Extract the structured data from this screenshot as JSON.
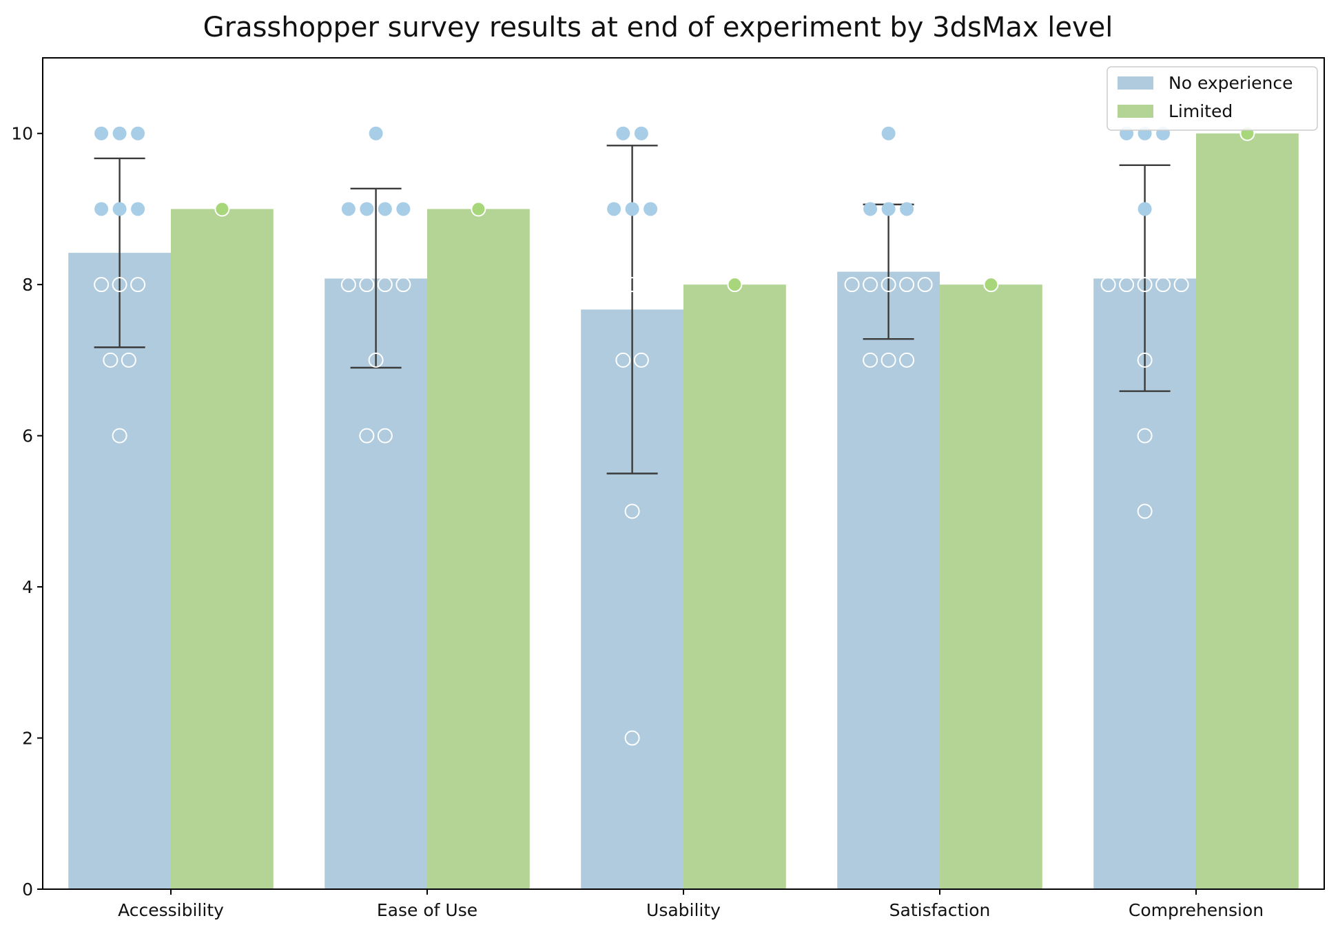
{
  "chart_data": {
    "type": "bar",
    "title": "Grasshopper survey results at end of experiment by 3dsMax level",
    "xlabel": "",
    "ylabel": "",
    "ylim": [
      0,
      11
    ],
    "yticks": [
      0,
      2,
      4,
      6,
      8,
      10
    ],
    "categories": [
      "Accessibility",
      "Ease of Use",
      "Usability",
      "Satisfaction",
      "Comprehension"
    ],
    "series": [
      {
        "name": "No experience",
        "color": "#afcbdd",
        "values": [
          8.42,
          8.08,
          7.67,
          8.17,
          8.08
        ],
        "error_bars": [
          [
            7.17,
            9.67
          ],
          [
            6.9,
            9.27
          ],
          [
            5.5,
            9.84
          ],
          [
            7.28,
            9.06
          ],
          [
            6.59,
            9.58
          ]
        ],
        "points": [
          [
            10,
            10,
            10,
            9,
            9,
            9,
            8,
            8,
            8,
            7,
            7,
            6
          ],
          [
            10,
            9,
            9,
            9,
            9,
            8,
            8,
            8,
            8,
            7,
            6,
            6
          ],
          [
            10,
            10,
            9,
            9,
            9,
            8,
            8,
            8,
            7,
            7,
            5,
            2
          ],
          [
            10,
            9,
            9,
            9,
            8,
            8,
            8,
            8,
            8,
            7,
            7,
            7
          ],
          [
            10,
            10,
            10,
            9,
            8,
            8,
            8,
            8,
            8,
            7,
            6,
            5
          ]
        ]
      },
      {
        "name": "Limited",
        "color": "#b3d494",
        "values": [
          9,
          9,
          8,
          8,
          10
        ],
        "points": [
          [
            9
          ],
          [
            9
          ],
          [
            8
          ],
          [
            8
          ],
          [
            10
          ]
        ]
      }
    ],
    "point_fill_color": "#a8cde6",
    "limited_point_color": "#a8d67a",
    "legend_position": "top-right",
    "grid": false
  }
}
